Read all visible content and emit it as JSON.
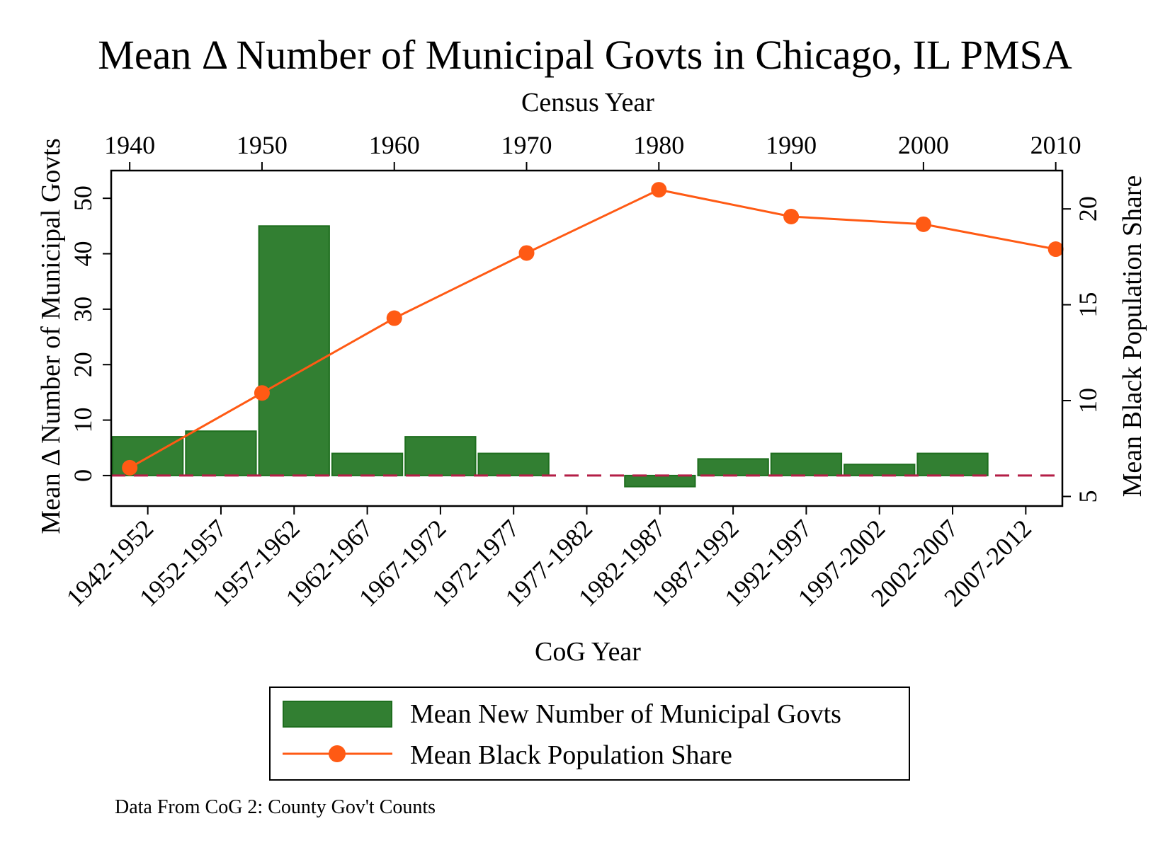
{
  "chart_data": {
    "type": "bar",
    "title": "Mean Δ Number of Municipal Govts in Chicago, IL PMSA",
    "xlabel": "CoG Year",
    "x2label": "Census Year",
    "ylabel": "Mean Δ Number of Municipal Govts",
    "y2label": "Mean Black Population Share",
    "note": "Data From CoG 2: County Gov't Counts",
    "ylim": [
      -5.5,
      55
    ],
    "y2lim": [
      4.5,
      22
    ],
    "yticks": [
      0,
      10,
      20,
      30,
      40,
      50
    ],
    "y2ticks": [
      5,
      10,
      15,
      20
    ],
    "x2lim": [
      1938.6,
      2010.5
    ],
    "x2ticks": [
      1940,
      1950,
      1960,
      1970,
      1980,
      1990,
      2000,
      2010
    ],
    "categories": [
      "1942-1952",
      "1952-1957",
      "1957-1962",
      "1962-1967",
      "1967-1972",
      "1972-1977",
      "1977-1982",
      "1982-1987",
      "1987-1992",
      "1992-1997",
      "1997-2002",
      "2002-2007",
      "2007-2012"
    ],
    "series": [
      {
        "name": "Mean New Number of Municipal Govts",
        "type": "bar",
        "color": "#327f32",
        "edge_color": "#1e6e1e",
        "values": [
          7,
          8,
          45,
          4,
          7,
          4,
          null,
          -2,
          3,
          4,
          2,
          4,
          null
        ]
      },
      {
        "name": "Mean Black Population Share",
        "type": "line",
        "axis": "y2",
        "x": [
          1940,
          1950,
          1960,
          1970,
          1980,
          1990,
          2000,
          2010
        ],
        "values": [
          6.5,
          10.4,
          14.3,
          17.7,
          21.0,
          19.6,
          19.2,
          17.9
        ],
        "color": "#ff5a14"
      }
    ],
    "reference_line": {
      "y": 0,
      "style": "dashed",
      "color": "#b41e46"
    },
    "grid": false,
    "legend_position": "bottom"
  }
}
